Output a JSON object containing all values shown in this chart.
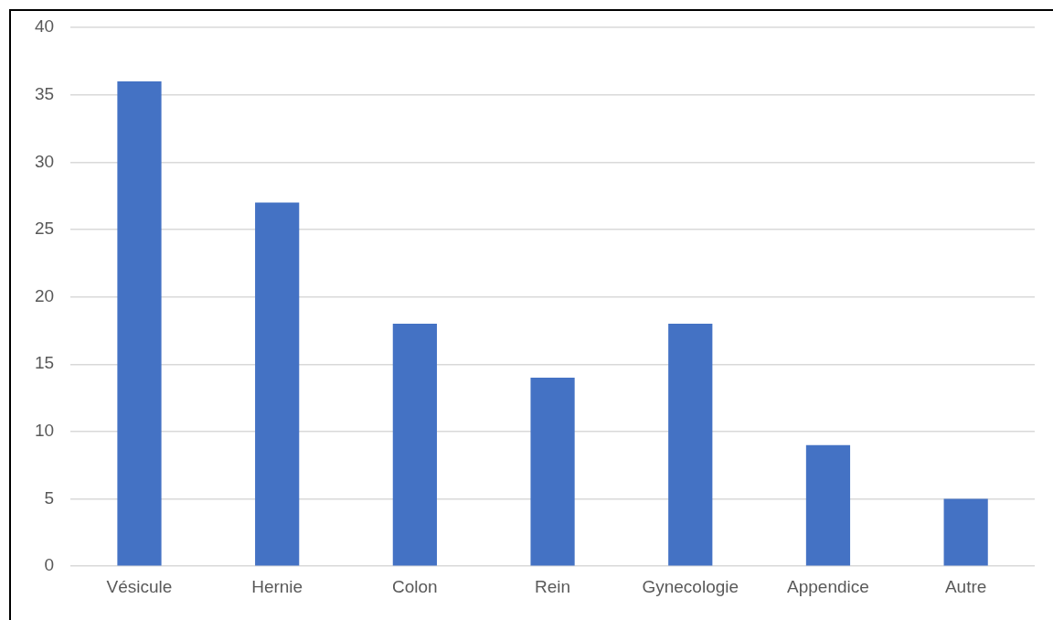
{
  "chart_data": {
    "type": "bar",
    "categories": [
      "Vésicule",
      "Hernie",
      "Colon",
      "Rein",
      "Gynecologie",
      "Appendice",
      "Autre"
    ],
    "values": [
      36,
      27,
      18,
      14,
      18,
      9,
      5
    ],
    "color": "#4472c4",
    "ylim": [
      0,
      40
    ],
    "yticks": [
      0,
      5,
      10,
      15,
      20,
      25,
      30,
      35,
      40
    ],
    "grid": "y",
    "legend": false
  }
}
